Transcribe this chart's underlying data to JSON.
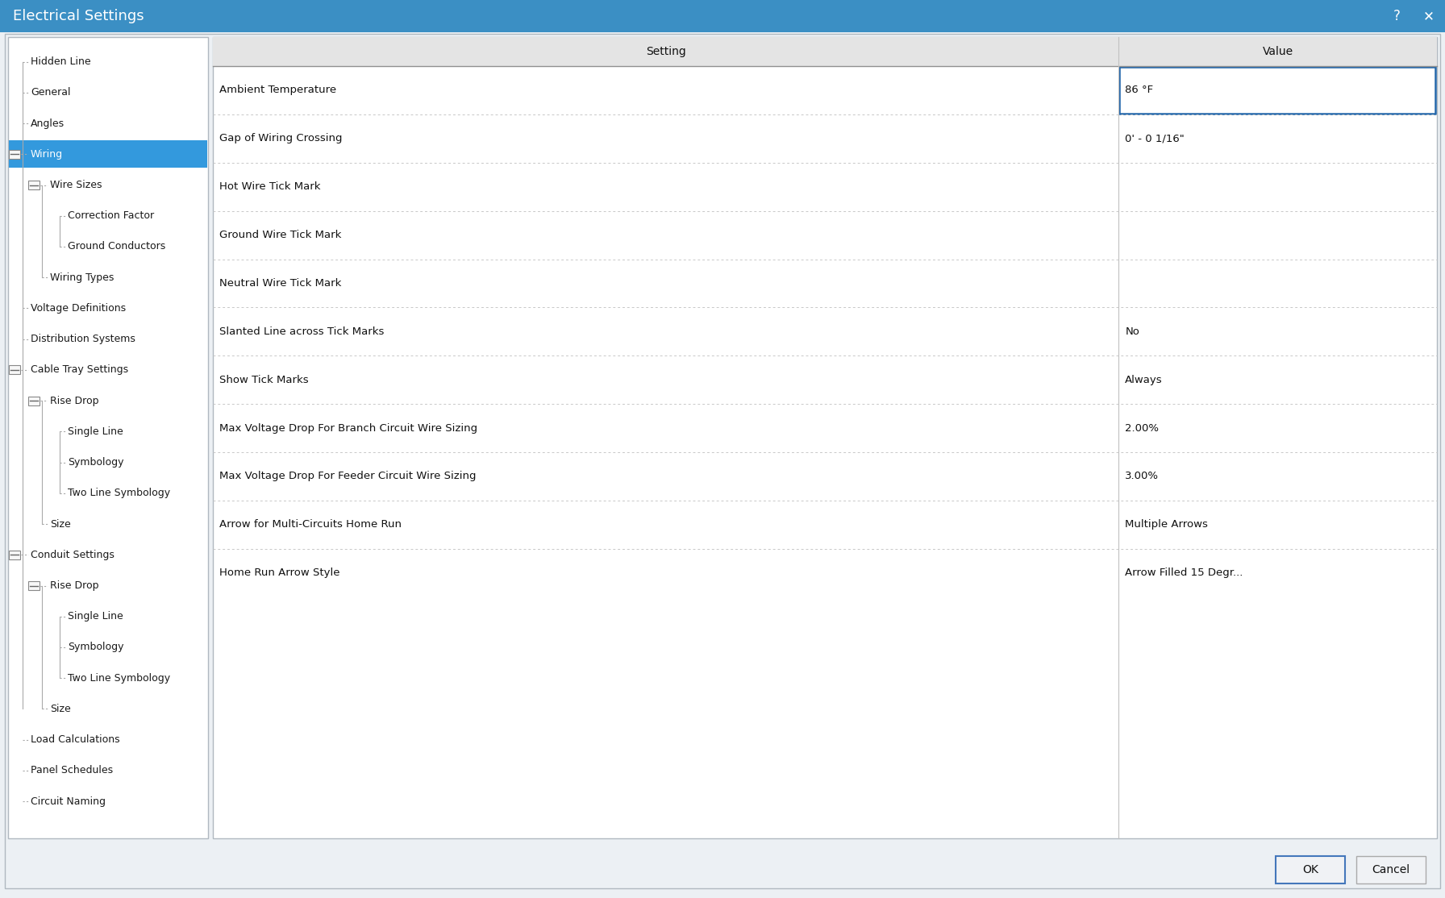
{
  "title": "Electrical Settings",
  "title_bar_color": "#3B8FC4",
  "title_text_color": "#FFFFFF",
  "title_fontsize": 13,
  "background_color": "#ECF0F4",
  "dialog_bg": "#ECF0F4",
  "panel_bg": "#FFFFFF",
  "tree_items": [
    {
      "label": "Hidden Line",
      "level": 1,
      "has_collapse": false,
      "selected": false
    },
    {
      "label": "General",
      "level": 1,
      "has_collapse": false,
      "selected": false
    },
    {
      "label": "Angles",
      "level": 1,
      "has_collapse": false,
      "selected": false
    },
    {
      "label": "Wiring",
      "level": 1,
      "has_collapse": true,
      "selected": true
    },
    {
      "label": "Wire Sizes",
      "level": 2,
      "has_collapse": true,
      "selected": false
    },
    {
      "label": "Correction Factor",
      "level": 3,
      "has_collapse": false,
      "selected": false
    },
    {
      "label": "Ground Conductors",
      "level": 3,
      "has_collapse": false,
      "selected": false
    },
    {
      "label": "Wiring Types",
      "level": 2,
      "has_collapse": false,
      "selected": false
    },
    {
      "label": "Voltage Definitions",
      "level": 1,
      "has_collapse": false,
      "selected": false
    },
    {
      "label": "Distribution Systems",
      "level": 1,
      "has_collapse": false,
      "selected": false
    },
    {
      "label": "Cable Tray Settings",
      "level": 1,
      "has_collapse": true,
      "selected": false
    },
    {
      "label": "Rise Drop",
      "level": 2,
      "has_collapse": true,
      "selected": false
    },
    {
      "label": "Single Line",
      "level": 3,
      "has_collapse": false,
      "selected": false
    },
    {
      "label": "Symbology",
      "level": 3,
      "has_collapse": false,
      "selected": false
    },
    {
      "label": "Two Line Symbology",
      "level": 3,
      "has_collapse": false,
      "selected": false
    },
    {
      "label": "Size",
      "level": 2,
      "has_collapse": false,
      "selected": false
    },
    {
      "label": "Conduit Settings",
      "level": 1,
      "has_collapse": true,
      "selected": false
    },
    {
      "label": "Rise Drop",
      "level": 2,
      "has_collapse": true,
      "selected": false
    },
    {
      "label": "Single Line",
      "level": 3,
      "has_collapse": false,
      "selected": false
    },
    {
      "label": "Symbology",
      "level": 3,
      "has_collapse": false,
      "selected": false
    },
    {
      "label": "Two Line Symbology",
      "level": 3,
      "has_collapse": false,
      "selected": false
    },
    {
      "label": "Size",
      "level": 2,
      "has_collapse": false,
      "selected": false
    },
    {
      "label": "Load Calculations",
      "level": 1,
      "has_collapse": false,
      "selected": false
    },
    {
      "label": "Panel Schedules",
      "level": 1,
      "has_collapse": false,
      "selected": false
    },
    {
      "label": "Circuit Naming",
      "level": 1,
      "has_collapse": false,
      "selected": false
    }
  ],
  "table_header": [
    "Setting",
    "Value"
  ],
  "table_header_bg": "#E4E4E4",
  "table_rows": [
    {
      "setting": "Ambient Temperature",
      "value": "86 °F",
      "highlighted": true
    },
    {
      "setting": "Gap of Wiring Crossing",
      "value": "0' - 0 1/16\"",
      "highlighted": false
    },
    {
      "setting": "Hot Wire Tick Mark",
      "value": "",
      "highlighted": false
    },
    {
      "setting": "Ground Wire Tick Mark",
      "value": "",
      "highlighted": false
    },
    {
      "setting": "Neutral Wire Tick Mark",
      "value": "",
      "highlighted": false
    },
    {
      "setting": "Slanted Line across Tick Marks",
      "value": "No",
      "highlighted": false
    },
    {
      "setting": "Show Tick Marks",
      "value": "Always",
      "highlighted": false
    },
    {
      "setting": "Max Voltage Drop For Branch Circuit Wire Sizing",
      "value": "2.00%",
      "highlighted": false
    },
    {
      "setting": "Max Voltage Drop For Feeder Circuit Wire Sizing",
      "value": "3.00%",
      "highlighted": false
    },
    {
      "setting": "Arrow for Multi-Circuits Home Run",
      "value": "Multiple Arrows",
      "highlighted": false
    },
    {
      "setting": "Home Run Arrow Style",
      "value": "Arrow Filled 15 Degr...",
      "highlighted": false
    }
  ],
  "button_ok": "OK",
  "button_cancel": "Cancel",
  "question_mark": "?",
  "close_x": "✕"
}
